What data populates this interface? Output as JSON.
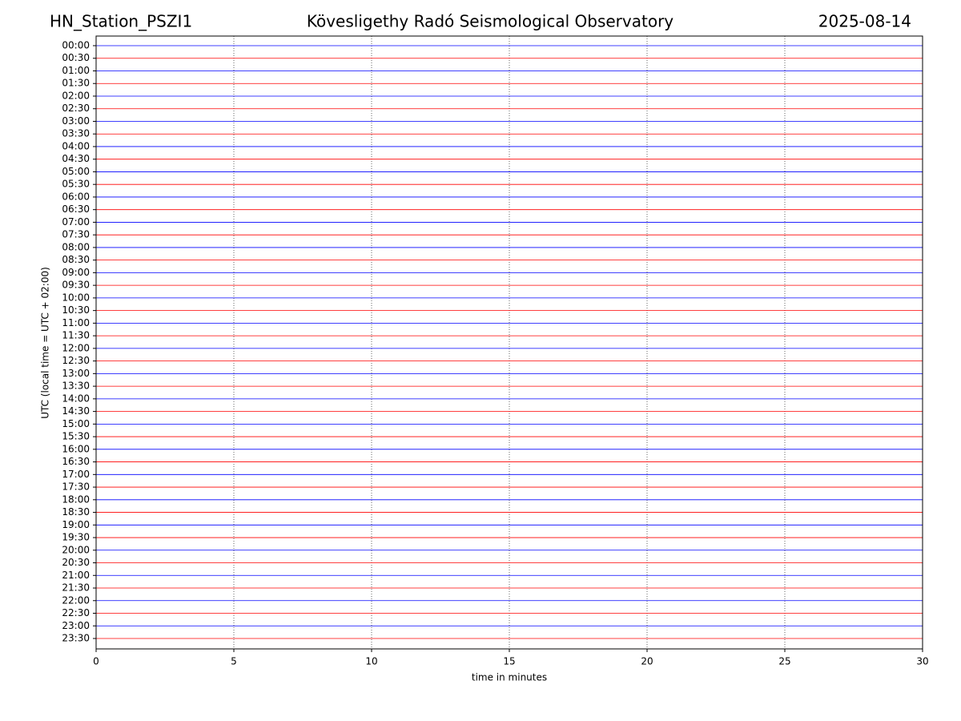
{
  "chart_data": {
    "type": "helicorder",
    "title": "Kövesligethy Radó Seismological Observatory",
    "station": "HN_Station_PSZI1",
    "date": "2025-08-14",
    "x_label": "time in minutes",
    "y_label": "UTC (local time = UTC + 02:00)",
    "categories": [
      "00:00",
      "00:30",
      "01:00",
      "01:30",
      "02:00",
      "02:30",
      "03:00",
      "03:30",
      "04:00",
      "04:30",
      "05:00",
      "05:30",
      "06:00",
      "06:30",
      "07:00",
      "07:30",
      "08:00",
      "08:30",
      "09:00",
      "09:30",
      "10:00",
      "10:30",
      "11:00",
      "11:30",
      "12:00",
      "12:30",
      "13:00",
      "13:30",
      "14:00",
      "14:30",
      "15:00",
      "15:30",
      "16:00",
      "16:30",
      "17:00",
      "17:30",
      "18:00",
      "18:30",
      "19:00",
      "19:30",
      "20:00",
      "20:30",
      "21:00",
      "21:30",
      "22:00",
      "22:30",
      "23:00",
      "23:30"
    ],
    "trace_colors": [
      "#0000ff",
      "#ff0000"
    ],
    "xlim": [
      0,
      30
    ],
    "xticks": [
      0,
      5,
      10,
      15,
      20,
      25,
      30
    ],
    "grid": true
  }
}
